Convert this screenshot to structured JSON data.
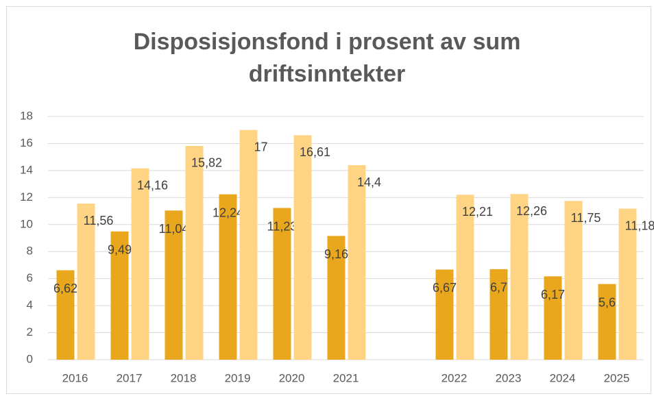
{
  "chart_data": {
    "type": "bar",
    "title": "Disposisjonsfond i prosent av sum driftsinntekter",
    "categories": [
      "2016",
      "2017",
      "2018",
      "2019",
      "2020",
      "2021",
      null,
      "2022",
      "2023",
      "2024",
      "2025"
    ],
    "series": [
      {
        "color": "#e8a71c",
        "values": [
          6.62,
          9.49,
          11.04,
          12.24,
          11.23,
          9.16,
          null,
          6.67,
          6.7,
          6.17,
          5.6
        ],
        "value_labels": [
          "6,62",
          "9,49",
          "11,04",
          "12,24",
          "11,23",
          "9,16",
          null,
          "6,67",
          "6,7",
          "6,17",
          "5,6"
        ]
      },
      {
        "color": "#ffd585",
        "values": [
          11.56,
          14.16,
          15.82,
          17,
          16.61,
          14.4,
          null,
          12.21,
          12.26,
          11.75,
          11.18
        ],
        "value_labels": [
          "11,56",
          "14,16",
          "15,82",
          "17",
          "16,61",
          "14,4",
          null,
          "12,21",
          "12,26",
          "11,75",
          "11,18"
        ]
      }
    ],
    "ylim": [
      0,
      18
    ],
    "yticks": [
      0,
      2,
      4,
      6,
      8,
      10,
      12,
      14,
      16,
      18
    ],
    "grid": true
  }
}
